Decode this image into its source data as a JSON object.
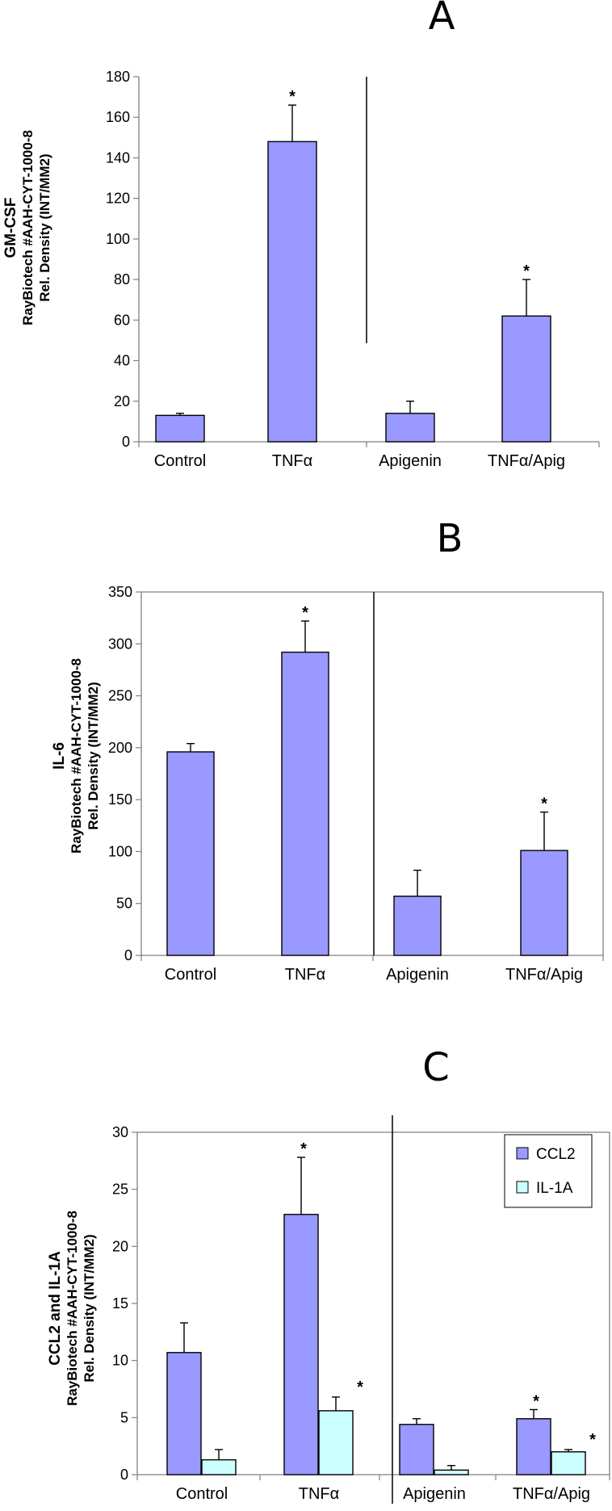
{
  "panels": [
    {
      "letter": "A",
      "ylabel": [
        "GM-CSF",
        "RayBiotech #AAH-CYT-1000-8",
        "Rel. Density (INT/MM2)"
      ]
    },
    {
      "letter": "B",
      "ylabel": [
        "IL-6",
        "RayBiotech #AAH-CYT-1000-8",
        "Rel. Density (INT/MM2)"
      ]
    },
    {
      "letter": "C",
      "ylabel": [
        "CCL2 and IL-1A",
        "RayBiotech #AAH-CYT-1000-8",
        "Rel. Density (INT/MM2)"
      ]
    }
  ],
  "colors": {
    "ccl2": "#9999ff",
    "il1a": "#ccffff",
    "axis": "#808080"
  },
  "chart_data": [
    {
      "type": "bar",
      "title": "A",
      "ylabel": "GM-CSF RayBiotech #AAH-CYT-1000-8 Rel. Density (INT/MM2)",
      "categories": [
        "Control",
        "TNFα",
        "Apigenin",
        "TNFα/Apig"
      ],
      "series": [
        {
          "name": "GM-CSF",
          "values": [
            13,
            148,
            14,
            62
          ],
          "errors": [
            1,
            18,
            6,
            18
          ],
          "significant": [
            false,
            true,
            false,
            true
          ]
        }
      ],
      "ylim": [
        0,
        180
      ],
      "yticks": [
        0,
        20,
        40,
        60,
        80,
        100,
        120,
        140,
        160,
        180
      ],
      "star_text": "*",
      "legend": false,
      "grid": false
    },
    {
      "type": "bar",
      "title": "B",
      "ylabel": "IL-6 RayBiotech #AAH-CYT-1000-8 Rel. Density (INT/MM2)",
      "categories": [
        "Control",
        "TNFα",
        "Apigenin",
        "TNFα/Apig"
      ],
      "series": [
        {
          "name": "IL-6",
          "values": [
            196,
            292,
            57,
            101
          ],
          "errors": [
            8,
            30,
            25,
            37
          ],
          "significant": [
            false,
            true,
            false,
            true
          ]
        }
      ],
      "ylim": [
        0,
        350
      ],
      "yticks": [
        0,
        50,
        100,
        150,
        200,
        250,
        300,
        350
      ],
      "star_text": "*",
      "legend": false,
      "grid": false
    },
    {
      "type": "bar",
      "title": "C",
      "ylabel": "CCL2 and IL-1A RayBiotech #AAH-CYT-1000-8 Rel. Density (INT/MM2)",
      "categories": [
        "Control",
        "TNFα",
        "Apigenin",
        "TNFα/Apig"
      ],
      "series": [
        {
          "name": "CCL2",
          "values": [
            10.7,
            22.8,
            4.4,
            4.9
          ],
          "errors": [
            2.6,
            5.0,
            0.5,
            0.8
          ],
          "significant": [
            false,
            true,
            false,
            true
          ]
        },
        {
          "name": "IL-1A",
          "values": [
            1.3,
            5.6,
            0.4,
            2.0
          ],
          "errors": [
            0.9,
            1.2,
            0.4,
            0.2
          ],
          "significant": [
            false,
            true,
            false,
            true
          ]
        }
      ],
      "ylim": [
        0,
        30
      ],
      "yticks": [
        0,
        5,
        10,
        15,
        20,
        25,
        30
      ],
      "star_text": "*",
      "legend": true,
      "legend_position": "top-right",
      "grid": false
    }
  ]
}
